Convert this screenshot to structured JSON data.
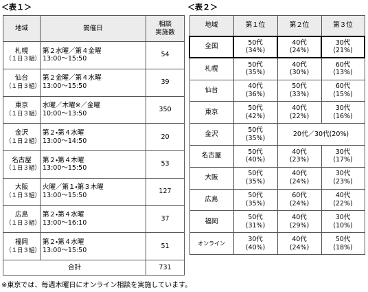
{
  "table1": {
    "title": "＜表１＞",
    "header": {
      "region": "地域",
      "dates": "開催日",
      "count_lines": [
        "相談",
        "実施数"
      ]
    },
    "rows": [
      {
        "region": "札幌",
        "groups": "（１日３組）",
        "days": "第２水曜／第４金曜",
        "time": "13:00～15:50",
        "count": 54
      },
      {
        "region": "仙台",
        "groups": "（１日３組）",
        "days": "第２金曜／第４水曜",
        "time": "13:00～15:50",
        "count": 39
      },
      {
        "region": "東京",
        "groups": "（１日３組）",
        "days": "水曜／木曜※／金曜",
        "time": "10:00～13:50",
        "count": 350
      },
      {
        "region": "金沢",
        "groups": "（１日２組）",
        "days": "第２・第４水曜",
        "time": "13:00～14:50",
        "count": 20
      },
      {
        "region": "名古屋",
        "groups": "（１日３組）",
        "days": "第２・第４木曜",
        "time": "13:00～15:50",
        "count": 53
      },
      {
        "region": "大阪",
        "groups": "（１日３組）",
        "days": "火曜／第１・第３木曜",
        "time": "13:00～15:50",
        "count": 127
      },
      {
        "region": "広島",
        "groups": "（１日３組）",
        "days": "第２・第４水曜",
        "time": "13:00～16:10",
        "count": 37
      },
      {
        "region": "福岡",
        "groups": "（１日３組）",
        "days": "第２・第４水曜",
        "time": "13:00～15:50",
        "count": 51
      }
    ],
    "total": {
      "label": "合計",
      "count": 731
    },
    "note": "※東京では、毎週木曜日にオンライン相談を実施しています。"
  },
  "table2": {
    "title": "＜表２＞",
    "headers": [
      "地域",
      "第１位",
      "第２位",
      "第３位"
    ],
    "rows": [
      {
        "region": "全国",
        "ranks": [
          {
            "age": "50代",
            "share": "(34%)"
          },
          {
            "age": "40代",
            "share": "(24%)"
          },
          {
            "age": "30代",
            "share": "(21%)"
          }
        ]
      },
      {
        "region": "札幌",
        "ranks": [
          {
            "age": "50代",
            "share": "(35%)"
          },
          {
            "age": "40代",
            "share": "(30%)"
          },
          {
            "age": "60代",
            "share": "(13%)"
          }
        ]
      },
      {
        "region": "仙台",
        "ranks": [
          {
            "age": "40代",
            "share": "(36%)"
          },
          {
            "age": "50代",
            "share": "(33%)"
          },
          {
            "age": "60代",
            "share": "(15%)"
          }
        ]
      },
      {
        "region": "東京",
        "ranks": [
          {
            "age": "50代",
            "share": "(42%)"
          },
          {
            "age": "40代",
            "share": "(22%)"
          },
          {
            "age": "30代",
            "share": "(16%)"
          }
        ]
      },
      {
        "region": "金沢",
        "ranks": [
          {
            "age": "50代",
            "share": "(35%)"
          },
          {
            "age": "20代／30代(20%)"
          }
        ]
      },
      {
        "region": "名古屋",
        "ranks": [
          {
            "age": "50代",
            "share": "(40%)"
          },
          {
            "age": "40代",
            "share": "(23%)"
          },
          {
            "age": "30代",
            "share": "(17%)"
          }
        ]
      },
      {
        "region": "大阪",
        "ranks": [
          {
            "age": "50代",
            "share": "(35%)"
          },
          {
            "age": "40代",
            "share": "(24%)"
          },
          {
            "age": "30代",
            "share": "(23%)"
          }
        ]
      },
      {
        "region": "広島",
        "ranks": [
          {
            "age": "50代",
            "share": "(35%)"
          },
          {
            "age": "60代",
            "share": "(24%)"
          },
          {
            "age": "40代",
            "share": "(22%)"
          }
        ]
      },
      {
        "region": "福岡",
        "ranks": [
          {
            "age": "50代",
            "share": "(31%)"
          },
          {
            "age": "40代",
            "share": "(29%)"
          },
          {
            "age": "30代",
            "share": "(10%)"
          }
        ]
      },
      {
        "region": "オンライン",
        "ranks": [
          {
            "age": "30代",
            "share": "(40%)"
          },
          {
            "age": "40代",
            "share": "(24%)"
          },
          {
            "age": "50代",
            "share": "(18%)"
          }
        ]
      }
    ]
  }
}
